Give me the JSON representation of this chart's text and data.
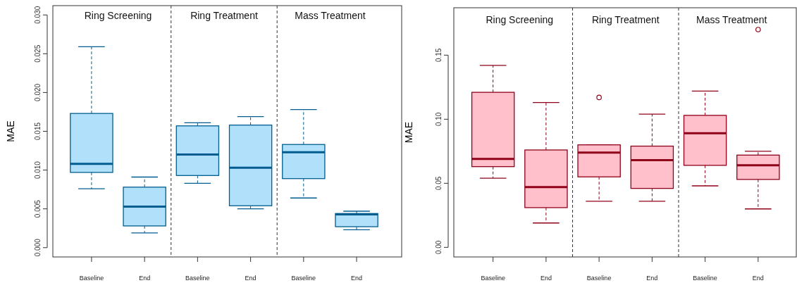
{
  "chart_data": [
    {
      "type": "box",
      "ylabel": "MAE",
      "categories": [
        "Baseline",
        "End",
        "Baseline",
        "End",
        "Baseline",
        "End"
      ],
      "ylim": [
        -0.0012,
        0.0312
      ],
      "yticks": [
        {
          "value": 0,
          "label": "0.000"
        },
        {
          "value": 0.005,
          "label": "0.005"
        },
        {
          "value": 0.01,
          "label": "0.010"
        },
        {
          "value": 0.015,
          "label": "0.015"
        },
        {
          "value": 0.02,
          "label": "0.020"
        },
        {
          "value": 0.025,
          "label": "0.025"
        },
        {
          "value": 0.03,
          "label": "0.030"
        }
      ],
      "annotations": [
        "Ring Screening",
        "Ring Treatment",
        "Mass Treatment"
      ],
      "series": [
        {
          "color": "#b0e0fa",
          "boxes": [
            {
              "low": 0.0076,
              "q1": 0.0097,
              "median": 0.0108,
              "q3": 0.0173,
              "high": 0.0259
            },
            {
              "low": 0.0019,
              "q1": 0.0028,
              "median": 0.0053,
              "q3": 0.0078,
              "high": 0.0091
            },
            {
              "low": 0.0083,
              "q1": 0.0093,
              "median": 0.012,
              "q3": 0.0157,
              "high": 0.0161
            },
            {
              "low": 0.005,
              "q1": 0.0054,
              "median": 0.0103,
              "q3": 0.0158,
              "high": 0.0169
            },
            {
              "low": 0.0064,
              "q1": 0.0089,
              "median": 0.0123,
              "q3": 0.0133,
              "high": 0.0178
            },
            {
              "low": 0.0023,
              "q1": 0.0027,
              "median": 0.0043,
              "q3": 0.0044,
              "high": 0.0047
            }
          ]
        }
      ]
    },
    {
      "type": "box",
      "ylabel": "MAE",
      "categories": [
        "Baseline",
        "End",
        "Baseline",
        "End",
        "Baseline",
        "End"
      ],
      "ylim": [
        -0.0075,
        0.187
      ],
      "yticks": [
        {
          "value": 0,
          "label": "0.00"
        },
        {
          "value": 0.05,
          "label": "0.05"
        },
        {
          "value": 0.1,
          "label": "0.10"
        },
        {
          "value": 0.15,
          "label": "0.15"
        }
      ],
      "annotations": [
        "Ring Screening",
        "Ring Treatment",
        "Mass Treatment"
      ],
      "series": [
        {
          "color": "#ffc0cb",
          "boxes": [
            {
              "low": 0.054,
              "q1": 0.063,
              "median": 0.069,
              "q3": 0.121,
              "high": 0.142
            },
            {
              "low": 0.019,
              "q1": 0.031,
              "median": 0.047,
              "q3": 0.076,
              "high": 0.113
            },
            {
              "low": 0.036,
              "q1": 0.055,
              "median": 0.074,
              "q3": 0.08,
              "high": 0.08,
              "outliers": [
                0.117
              ]
            },
            {
              "low": 0.036,
              "q1": 0.046,
              "median": 0.068,
              "q3": 0.079,
              "high": 0.104
            },
            {
              "low": 0.048,
              "q1": 0.064,
              "median": 0.089,
              "q3": 0.103,
              "high": 0.122
            },
            {
              "low": 0.03,
              "q1": 0.053,
              "median": 0.064,
              "q3": 0.072,
              "high": 0.075,
              "outliers": [
                0.17
              ]
            }
          ]
        }
      ]
    }
  ]
}
